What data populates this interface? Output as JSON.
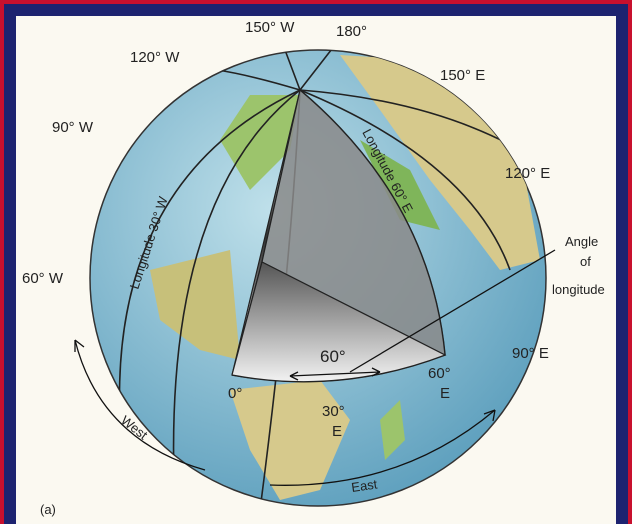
{
  "panel_label": "(a)",
  "meridian_labels": [
    "150° W",
    "180°",
    "120° W",
    "150° E",
    "90° W",
    "120° E",
    "60° W",
    "90° E"
  ],
  "longitude_lines": [
    "Longitude 30° W",
    "Longitude 60° E"
  ],
  "angle_callout": [
    "Angle",
    "of",
    "longitude"
  ],
  "angle_value": "60°",
  "base_labels": {
    "zero": "0°",
    "thirty": [
      "30°",
      "E"
    ],
    "sixty": [
      "60°",
      "E"
    ]
  },
  "directions": {
    "west": "West",
    "east": "East"
  }
}
